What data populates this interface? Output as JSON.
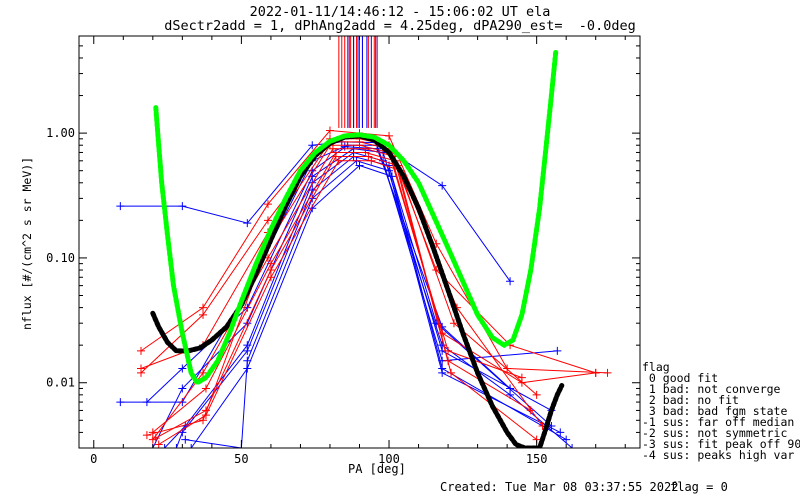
{
  "title_line1": "2022-01-11/14:46:12 - 15:06:02 UT ela",
  "title_line2": "dSectr2add = 1, dPhAng2add = 4.25deg, dPA290_est=  -0.0deg",
  "footer_created": "Created: Tue Mar 08 03:37:55 2022",
  "footer_flag": "flag = 0",
  "legend": [
    "flag",
    " 0 good fit",
    " 1 bad: not converge",
    " 2 bad: no fit",
    " 3 bad: bad fgm state",
    "-1 sus: far off median",
    "-2 sus: not symmetric",
    "-3 sus: fit peak off 90",
    "-4 sus: peaks high var"
  ],
  "chart_data": {
    "type": "line",
    "xlabel": "PA [deg]",
    "ylabel": "nflux [#/(cm^2 s sr MeV)]",
    "xlim": [
      -5,
      185
    ],
    "ylim": [
      0.003,
      6
    ],
    "yscale": "log",
    "xticks": [
      0,
      50,
      100,
      150
    ],
    "yticks": [
      0.01,
      0.1,
      1.0
    ],
    "ytick_labels": [
      "0.01",
      "0.10",
      "1.00"
    ],
    "colors": {
      "red": "#ff0000",
      "blue": "#0000ff",
      "green": "#00ff00",
      "black": "#000000"
    },
    "blue_series": [
      [
        [
          9,
          0.26
        ],
        [
          30,
          0.26
        ],
        [
          52,
          0.19
        ],
        [
          74,
          0.8
        ],
        [
          84,
          0.85
        ],
        [
          96,
          0.84
        ],
        [
          118,
          0.38
        ],
        [
          141,
          0.065
        ]
      ],
      [
        [
          9,
          0.007
        ],
        [
          30,
          0.007
        ],
        [
          52,
          0.055
        ],
        [
          74,
          0.6
        ],
        [
          85,
          0.78
        ],
        [
          96,
          0.75
        ],
        [
          118,
          0.028
        ],
        [
          141,
          0.009
        ]
      ],
      [
        [
          18,
          0.007
        ],
        [
          30,
          0.013
        ],
        [
          52,
          0.04
        ],
        [
          74,
          0.5
        ],
        [
          86,
          0.8
        ],
        [
          96,
          0.8
        ],
        [
          118,
          0.02
        ],
        [
          141,
          0.008
        ],
        [
          162,
          0.003
        ]
      ],
      [
        [
          20,
          0.003
        ],
        [
          30,
          0.009
        ],
        [
          52,
          0.03
        ],
        [
          74,
          0.45
        ],
        [
          88,
          0.75
        ],
        [
          98,
          0.7
        ],
        [
          118,
          0.018
        ],
        [
          155,
          0.006
        ]
      ],
      [
        [
          24,
          0.003
        ],
        [
          31,
          0.0045
        ],
        [
          52,
          0.02
        ],
        [
          74,
          0.4
        ],
        [
          88,
          0.7
        ],
        [
          98,
          0.6
        ],
        [
          118,
          0.015
        ],
        [
          157,
          0.018
        ]
      ],
      [
        [
          28,
          0.003
        ],
        [
          30,
          0.004
        ],
        [
          52,
          0.018
        ],
        [
          74,
          0.35
        ],
        [
          88,
          0.65
        ],
        [
          100,
          0.55
        ],
        [
          118,
          0.013
        ],
        [
          160,
          0.0035
        ]
      ],
      [
        [
          31,
          0.0035
        ],
        [
          50,
          0.003
        ],
        [
          52,
          0.015
        ],
        [
          74,
          0.3
        ],
        [
          89,
          0.6
        ],
        [
          100,
          0.5
        ],
        [
          118,
          0.012
        ],
        [
          158,
          0.004
        ]
      ],
      [
        [
          33,
          0.003
        ],
        [
          52,
          0.013
        ],
        [
          74,
          0.25
        ],
        [
          90,
          0.55
        ],
        [
          101,
          0.45
        ],
        [
          116,
          0.03
        ],
        [
          155,
          0.0045
        ]
      ]
    ],
    "red_series": [
      [
        [
          16,
          0.018
        ],
        [
          37,
          0.04
        ],
        [
          59,
          0.27
        ],
        [
          80,
          1.05
        ],
        [
          90,
          1.0
        ],
        [
          100,
          0.95
        ],
        [
          116,
          0.13
        ],
        [
          140,
          0.013
        ],
        [
          174,
          0.012
        ]
      ],
      [
        [
          16,
          0.012
        ],
        [
          37,
          0.035
        ],
        [
          59,
          0.2
        ],
        [
          80,
          0.9
        ],
        [
          90,
          0.9
        ],
        [
          100,
          0.8
        ],
        [
          116,
          0.08
        ],
        [
          141,
          0.02
        ],
        [
          170,
          0.012
        ]
      ],
      [
        [
          16,
          0.013
        ],
        [
          37,
          0.02
        ],
        [
          59,
          0.16
        ],
        [
          80,
          0.85
        ],
        [
          90,
          0.85
        ],
        [
          100,
          0.75
        ],
        [
          118,
          0.025
        ],
        [
          145,
          0.01
        ],
        [
          170,
          0.012
        ]
      ],
      [
        [
          18,
          0.0038
        ],
        [
          37,
          0.005
        ],
        [
          59,
          0.13
        ],
        [
          80,
          0.8
        ],
        [
          90,
          0.8
        ],
        [
          100,
          0.7
        ],
        [
          120,
          0.018
        ],
        [
          145,
          0.011
        ]
      ],
      [
        [
          20,
          0.0035
        ],
        [
          37,
          0.012
        ],
        [
          59,
          0.1
        ],
        [
          81,
          0.75
        ],
        [
          92,
          0.75
        ],
        [
          102,
          0.65
        ],
        [
          120,
          0.015
        ],
        [
          148,
          0.006
        ]
      ],
      [
        [
          20,
          0.004
        ],
        [
          38,
          0.009
        ],
        [
          60,
          0.09
        ],
        [
          82,
          0.7
        ],
        [
          92,
          0.7
        ],
        [
          102,
          0.6
        ],
        [
          121,
          0.012
        ],
        [
          150,
          0.0035
        ]
      ],
      [
        [
          21,
          0.0036
        ],
        [
          38,
          0.006
        ],
        [
          60,
          0.08
        ],
        [
          82,
          0.65
        ],
        [
          93,
          0.65
        ],
        [
          103,
          0.55
        ],
        [
          122,
          0.03
        ],
        [
          150,
          0.008
        ]
      ],
      [
        [
          22,
          0.0032
        ],
        [
          38,
          0.0055
        ],
        [
          60,
          0.07
        ],
        [
          83,
          0.6
        ],
        [
          94,
          0.6
        ],
        [
          104,
          0.5
        ],
        [
          123,
          0.04
        ],
        [
          152,
          0.0045
        ]
      ]
    ],
    "red_peak_verticals": [
      83,
      84,
      85,
      86,
      87,
      88,
      89,
      90,
      91,
      93,
      95,
      96
    ],
    "blue_peak_verticals": [
      86.5,
      88,
      89.5,
      91,
      92.5,
      94,
      95.5
    ],
    "green_fit": [
      [
        21,
        1.6
      ],
      [
        22,
        0.8
      ],
      [
        23,
        0.4
      ],
      [
        25,
        0.15
      ],
      [
        27,
        0.06
      ],
      [
        30,
        0.025
      ],
      [
        33,
        0.012
      ],
      [
        35,
        0.01
      ],
      [
        38,
        0.011
      ],
      [
        42,
        0.015
      ],
      [
        46,
        0.025
      ],
      [
        50,
        0.045
      ],
      [
        55,
        0.09
      ],
      [
        60,
        0.17
      ],
      [
        65,
        0.3
      ],
      [
        70,
        0.5
      ],
      [
        75,
        0.7
      ],
      [
        80,
        0.86
      ],
      [
        85,
        0.95
      ],
      [
        90,
        0.97
      ],
      [
        95,
        0.93
      ],
      [
        100,
        0.8
      ],
      [
        105,
        0.6
      ],
      [
        110,
        0.4
      ],
      [
        115,
        0.22
      ],
      [
        120,
        0.12
      ],
      [
        125,
        0.065
      ],
      [
        130,
        0.035
      ],
      [
        135,
        0.023
      ],
      [
        139,
        0.02
      ],
      [
        142,
        0.022
      ],
      [
        145,
        0.035
      ],
      [
        148,
        0.08
      ],
      [
        151,
        0.25
      ],
      [
        153,
        0.7
      ],
      [
        155,
        2.0
      ],
      [
        156.5,
        4.5
      ]
    ],
    "black_fit": [
      [
        20,
        0.036
      ],
      [
        22,
        0.028
      ],
      [
        25,
        0.021
      ],
      [
        28,
        0.018
      ],
      [
        32,
        0.018
      ],
      [
        36,
        0.019
      ],
      [
        40,
        0.022
      ],
      [
        45,
        0.028
      ],
      [
        50,
        0.042
      ],
      [
        55,
        0.075
      ],
      [
        60,
        0.14
      ],
      [
        65,
        0.26
      ],
      [
        70,
        0.45
      ],
      [
        75,
        0.66
      ],
      [
        80,
        0.83
      ],
      [
        85,
        0.93
      ],
      [
        90,
        0.95
      ],
      [
        95,
        0.88
      ],
      [
        100,
        0.7
      ],
      [
        105,
        0.45
      ],
      [
        110,
        0.25
      ],
      [
        115,
        0.12
      ],
      [
        120,
        0.055
      ],
      [
        125,
        0.025
      ],
      [
        130,
        0.012
      ],
      [
        135,
        0.0065
      ],
      [
        140,
        0.004
      ],
      [
        143,
        0.0032
      ],
      [
        146,
        0.003
      ],
      [
        151,
        0.003
      ],
      [
        153,
        0.0042
      ],
      [
        155,
        0.006
      ],
      [
        157,
        0.008
      ],
      [
        158.5,
        0.0095
      ]
    ]
  }
}
